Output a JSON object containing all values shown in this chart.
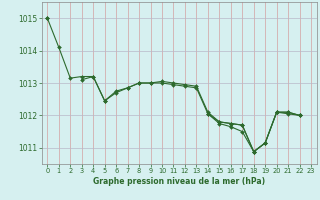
{
  "series": [
    [
      1015.0,
      1014.1,
      1013.15,
      1013.2,
      1013.2,
      1012.45,
      1012.75,
      1012.85,
      1013.0,
      1013.0,
      1013.05,
      1013.0,
      1012.95,
      1012.9,
      1012.1,
      1011.8,
      1011.75,
      1011.7,
      1010.88,
      1011.15,
      1012.1,
      1012.05,
      1012.0,
      null
    ],
    [
      1015.0,
      null,
      null,
      1013.1,
      1013.2,
      1012.45,
      1012.7,
      1012.85,
      1013.0,
      1013.0,
      1013.0,
      1012.95,
      1012.9,
      1012.85,
      1012.05,
      1011.8,
      1011.75,
      1011.7,
      1010.88,
      1011.15,
      1012.1,
      1012.1,
      1012.0,
      null
    ],
    [
      null,
      null,
      null,
      null,
      null,
      null,
      null,
      null,
      null,
      null,
      null,
      null,
      null,
      null,
      1012.05,
      1011.75,
      1011.65,
      1011.5,
      1010.88,
      1011.15,
      1012.1,
      1012.1,
      1012.0,
      null
    ]
  ],
  "x": [
    0,
    1,
    2,
    3,
    4,
    5,
    6,
    7,
    8,
    9,
    10,
    11,
    12,
    13,
    14,
    15,
    16,
    17,
    18,
    19,
    20,
    21,
    22,
    23
  ],
  "line_color": "#2d6a2d",
  "bg_color": "#d6f0f0",
  "grid_color_h": "#b8b8c8",
  "grid_color_v": "#d4a0a0",
  "title": "Graphe pression niveau de la mer (hPa)",
  "ylim": [
    1010.5,
    1015.5
  ],
  "yticks": [
    1011,
    1012,
    1013,
    1014,
    1015
  ],
  "xlim": [
    -0.5,
    23.5
  ],
  "xticks": [
    0,
    1,
    2,
    3,
    4,
    5,
    6,
    7,
    8,
    9,
    10,
    11,
    12,
    13,
    14,
    15,
    16,
    17,
    18,
    19,
    20,
    21,
    22,
    23
  ]
}
